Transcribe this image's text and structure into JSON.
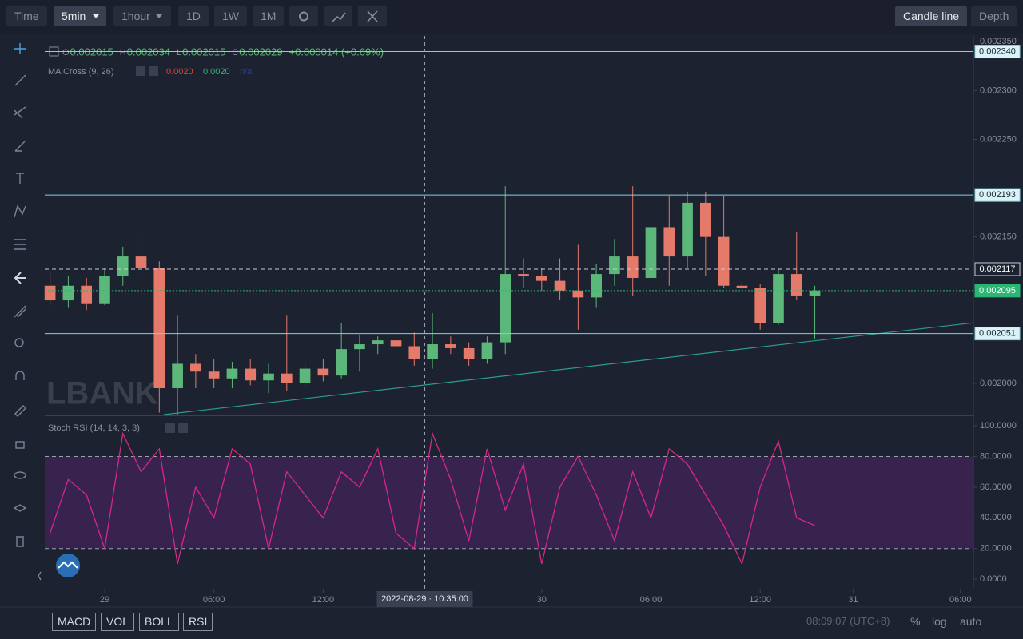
{
  "toolbar": {
    "intervals": [
      "Time",
      "5min",
      "1hour",
      "1D",
      "1W",
      "1M"
    ],
    "views": [
      "Candle line",
      "Depth"
    ]
  },
  "legend": {
    "ohlc": [
      {
        "key": "O",
        "value": "0.002015"
      },
      {
        "key": "H",
        "value": "0.002034"
      },
      {
        "key": "L",
        "value": "0.002015"
      },
      {
        "key": "C",
        "value": "0.002029"
      }
    ],
    "change": "+0.000014 (+0.69%)"
  },
  "indicator": {
    "title": "MA Cross (9, 26)",
    "values": [
      "0.0020",
      "0.0020",
      "n/a"
    ]
  },
  "watermark": "LBANK",
  "chart_data": [
    {
      "type": "candlestick",
      "x": [
        -3,
        -2,
        -1,
        0,
        1,
        2,
        3,
        4,
        5,
        6,
        7,
        8,
        9,
        10,
        11,
        12,
        13,
        14,
        15,
        16,
        17,
        18,
        19,
        20,
        21,
        22,
        23,
        24,
        25,
        26,
        27,
        28,
        29,
        30,
        31,
        32,
        33,
        34,
        35,
        36,
        37,
        38,
        39
      ],
      "open": [
        0.0021,
        0.002085,
        0.0021,
        0.002082,
        0.00211,
        0.00213,
        0.002118,
        0.001995,
        0.00202,
        0.002012,
        0.002005,
        0.002015,
        0.002003,
        0.00201,
        0.002,
        0.002015,
        0.002008,
        0.002035,
        0.00204,
        0.002044,
        0.002038,
        0.002025,
        0.00204,
        0.002036,
        0.002025,
        0.002042,
        0.002112,
        0.00211,
        0.002105,
        0.002095,
        0.002088,
        0.002112,
        0.00213,
        0.002108,
        0.00216,
        0.00213,
        0.002185,
        0.00215,
        0.0021,
        0.002098,
        0.002062,
        0.002112,
        0.00209
      ],
      "high": [
        0.002115,
        0.00211,
        0.002108,
        0.002118,
        0.00214,
        0.002152,
        0.002125,
        0.00207,
        0.00203,
        0.002025,
        0.002022,
        0.002025,
        0.00202,
        0.00207,
        0.002022,
        0.002025,
        0.002062,
        0.00205,
        0.002048,
        0.002052,
        0.002052,
        0.002072,
        0.002048,
        0.002042,
        0.002048,
        0.002202,
        0.002128,
        0.002118,
        0.002128,
        0.002142,
        0.002122,
        0.002148,
        0.002202,
        0.002198,
        0.002192,
        0.002196,
        0.002196,
        0.002192,
        0.002104,
        0.002102,
        0.002118,
        0.002155,
        0.0021
      ],
      "low": [
        0.00208,
        0.002078,
        0.002075,
        0.00208,
        0.0021,
        0.002112,
        0.00197,
        0.001968,
        0.001995,
        0.001995,
        0.001995,
        0.001998,
        0.00199,
        0.001992,
        0.001995,
        0.002002,
        0.002005,
        0.002012,
        0.00203,
        0.002035,
        0.002018,
        0.002015,
        0.00203,
        0.002018,
        0.00202,
        0.00203,
        0.002098,
        0.002095,
        0.002085,
        0.002055,
        0.002078,
        0.0021,
        0.00209,
        0.0021,
        0.0021,
        0.002118,
        0.00211,
        0.002098,
        0.002094,
        0.002055,
        0.00206,
        0.002085,
        0.002045
      ],
      "close": [
        0.002085,
        0.0021,
        0.002082,
        0.00211,
        0.00213,
        0.002118,
        0.001995,
        0.00202,
        0.002012,
        0.002005,
        0.002015,
        0.002003,
        0.00201,
        0.002,
        0.002015,
        0.002008,
        0.002035,
        0.00204,
        0.002044,
        0.002038,
        0.002025,
        0.00204,
        0.002036,
        0.002025,
        0.002042,
        0.002112,
        0.00211,
        0.002105,
        0.002095,
        0.002088,
        0.002112,
        0.00213,
        0.002108,
        0.00216,
        0.00213,
        0.002185,
        0.00215,
        0.0021,
        0.002098,
        0.002062,
        0.002112,
        0.00209,
        0.002095
      ],
      "up_color": "#5cb87a",
      "down_color": "#e5796a",
      "xlim": [
        -3.29,
        47.71
      ],
      "ylim": [
        0.001968,
        0.002356
      ],
      "yticks": [
        {
          "value": 0.002,
          "label": "0.002000"
        },
        {
          "value": 0.00215,
          "label": "0.002150"
        },
        {
          "value": 0.00225,
          "label": "0.002250"
        },
        {
          "value": 0.0023,
          "label": "0.002300"
        },
        {
          "value": 0.00235,
          "label": "0.002350"
        }
      ],
      "price_lines": [
        {
          "value": 0.00234,
          "label": "0.002340",
          "color": "#7fd4e0",
          "style": "solid"
        },
        {
          "value": 0.002193,
          "label": "0.002193",
          "color": "#7fd4e0",
          "style": "solid"
        },
        {
          "value": 0.002117,
          "label": "0.002117",
          "color": "#c9ccd4",
          "style": "dashed"
        },
        {
          "value": 0.002095,
          "label": "0.002095",
          "color": "#2bb673",
          "style": "dotted"
        },
        {
          "value": 0.002051,
          "label": "0.002051",
          "color": "#7fd4e0",
          "style": "solid"
        }
      ],
      "trendline": {
        "x": [
          3.25,
          47.71
        ],
        "values": [
          0.001968,
          0.002062
        ],
        "color": "#2a9d8f"
      }
    },
    {
      "type": "line",
      "title": "Stoch RSI (14, 14, 3, 3)",
      "x": [
        -3,
        -2,
        -1,
        0,
        1,
        2,
        3,
        4,
        5,
        6,
        7,
        8,
        9,
        10,
        11,
        12,
        13,
        14,
        15,
        16,
        17,
        18,
        19,
        20,
        21,
        22,
        23,
        24,
        25,
        26,
        27,
        28,
        29,
        30,
        31,
        32,
        33,
        34,
        35,
        36,
        37,
        38,
        39
      ],
      "values": [
        30,
        65,
        55,
        20,
        95,
        70,
        85,
        10,
        60,
        40,
        85,
        75,
        20,
        70,
        55,
        40,
        70,
        60,
        85,
        30,
        20,
        95,
        65,
        25,
        85,
        45,
        75,
        10,
        60,
        80,
        55,
        25,
        70,
        40,
        85,
        75,
        55,
        35,
        10,
        60,
        90,
        40,
        35
      ],
      "color": "#d8278a",
      "band": [
        20,
        80
      ],
      "band_color": "#4a2560",
      "xlim": [
        -3.29,
        47.71
      ],
      "ylim": [
        -6.7,
        106.3
      ],
      "yticks": [
        {
          "value": 100,
          "label": "100.0000"
        },
        {
          "value": 80,
          "label": "80.0000"
        },
        {
          "value": 60,
          "label": "60.0000"
        },
        {
          "value": 40,
          "label": "40.0000"
        },
        {
          "value": 20,
          "label": "20.0000"
        },
        {
          "value": 0,
          "label": "0.0000"
        }
      ],
      "xticks": [
        {
          "value": 0,
          "label": "29"
        },
        {
          "value": 6,
          "label": "06:00"
        },
        {
          "value": 12,
          "label": "12:00"
        },
        {
          "value": 24,
          "label": "30"
        },
        {
          "value": 30,
          "label": "06:00"
        },
        {
          "value": 36,
          "label": "12:00"
        },
        {
          "value": 41.1,
          "label": "31"
        },
        {
          "value": 47,
          "label": "06:00"
        }
      ],
      "crosshair": {
        "value": 17.58,
        "label": "2022-08-29 · 10:35:00"
      }
    }
  ],
  "footer": {
    "buttons": [
      "MACD",
      "VOL",
      "BOLL",
      "RSI"
    ],
    "clock": "08:09:07 (UTC+8)",
    "options": [
      "%",
      "log",
      "auto"
    ]
  }
}
